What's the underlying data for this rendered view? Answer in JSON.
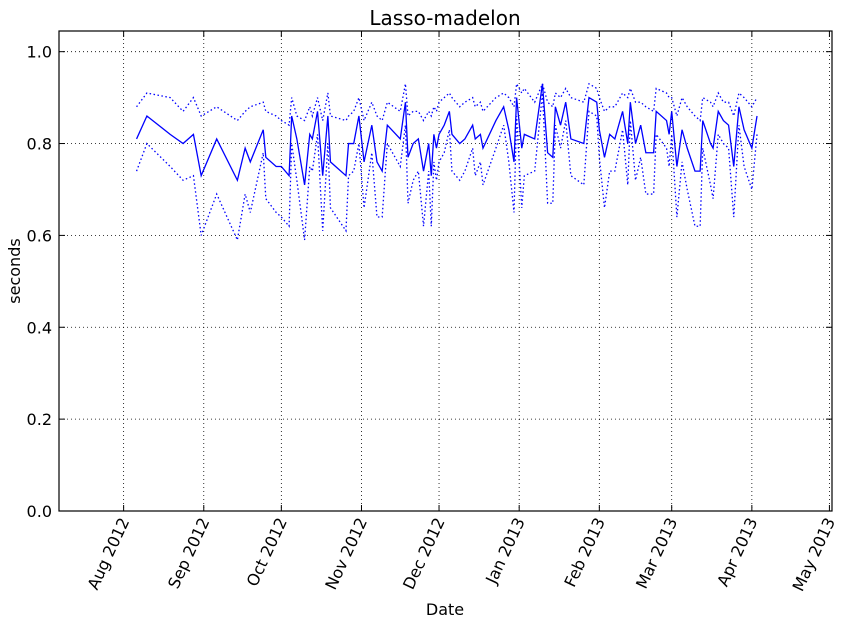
{
  "chart_data": {
    "type": "line",
    "title": "Lasso-madelon",
    "xlabel": "Date",
    "ylabel": "seconds",
    "x": [
      "2012-08-06",
      "2012-08-10",
      "2012-08-19",
      "2012-08-24",
      "2012-08-28",
      "2012-08-31",
      "2012-09-06",
      "2012-09-14",
      "2012-09-17",
      "2012-09-19",
      "2012-09-24",
      "2012-09-25",
      "2012-09-29",
      "2012-10-01",
      "2012-10-04",
      "2012-10-05",
      "2012-10-07",
      "2012-10-10",
      "2012-10-12",
      "2012-10-13",
      "2012-10-15",
      "2012-10-17",
      "2012-10-19",
      "2012-10-20",
      "2012-10-26",
      "2012-10-27",
      "2012-10-29",
      "2012-10-31",
      "2012-11-02",
      "2012-11-05",
      "2012-11-07",
      "2012-11-09",
      "2012-11-11",
      "2012-11-16",
      "2012-11-18",
      "2012-11-19",
      "2012-11-21",
      "2012-11-23",
      "2012-11-25",
      "2012-11-27",
      "2012-11-28",
      "2012-11-29",
      "2012-11-30",
      "2012-12-01",
      "2012-12-03",
      "2012-12-05",
      "2012-12-06",
      "2012-12-09",
      "2012-12-11",
      "2012-12-14",
      "2012-12-15",
      "2012-12-17",
      "2012-12-18",
      "2012-12-23",
      "2012-12-26",
      "2012-12-28",
      "2012-12-30",
      "2012-12-31",
      "2013-01-02",
      "2013-01-03",
      "2013-01-07",
      "2013-01-10",
      "2013-01-12",
      "2013-01-14",
      "2013-01-15",
      "2013-01-17",
      "2013-01-19",
      "2013-01-21",
      "2013-01-26",
      "2013-01-28",
      "2013-01-31",
      "2013-02-01",
      "2013-02-03",
      "2013-02-05",
      "2013-02-07",
      "2013-02-10",
      "2013-02-12",
      "2013-02-13",
      "2013-02-15",
      "2013-02-17",
      "2013-02-19",
      "2013-02-22",
      "2013-02-23",
      "2013-02-27",
      "2013-02-28",
      "2013-03-01",
      "2013-03-03",
      "2013-03-05",
      "2013-03-07",
      "2013-03-10",
      "2013-03-12",
      "2013-03-13",
      "2013-03-16",
      "2013-03-17",
      "2013-03-19",
      "2013-03-21",
      "2013-03-23",
      "2013-03-25",
      "2013-03-27",
      "2013-03-29",
      "2013-04-01",
      "2013-04-03"
    ],
    "series": [
      {
        "color": "#0000ff",
        "style": "solid",
        "values": [
          0.81,
          0.86,
          0.82,
          0.8,
          0.82,
          0.73,
          0.81,
          0.72,
          0.79,
          0.76,
          0.83,
          0.77,
          0.75,
          0.75,
          0.73,
          0.86,
          0.81,
          0.71,
          0.82,
          0.81,
          0.87,
          0.73,
          0.86,
          0.76,
          0.73,
          0.8,
          0.8,
          0.86,
          0.76,
          0.84,
          0.76,
          0.74,
          0.84,
          0.81,
          0.89,
          0.77,
          0.8,
          0.81,
          0.74,
          0.8,
          0.73,
          0.82,
          0.79,
          0.82,
          0.84,
          0.87,
          0.82,
          0.8,
          0.81,
          0.84,
          0.81,
          0.82,
          0.79,
          0.85,
          0.88,
          0.83,
          0.76,
          0.9,
          0.79,
          0.82,
          0.81,
          0.93,
          0.78,
          0.77,
          0.88,
          0.84,
          0.89,
          0.81,
          0.8,
          0.9,
          0.89,
          0.83,
          0.77,
          0.82,
          0.81,
          0.87,
          0.8,
          0.89,
          0.8,
          0.84,
          0.78,
          0.78,
          0.87,
          0.85,
          0.82,
          0.87,
          0.75,
          0.83,
          0.79,
          0.74,
          0.74,
          0.85,
          0.8,
          0.79,
          0.87,
          0.85,
          0.84,
          0.75,
          0.88,
          0.83,
          0.79,
          0.86
        ]
      },
      {
        "color": "#0000ff",
        "style": "dotted",
        "values": [
          0.88,
          0.91,
          0.9,
          0.87,
          0.9,
          0.86,
          0.88,
          0.85,
          0.87,
          0.88,
          0.89,
          0.87,
          0.86,
          0.85,
          0.84,
          0.9,
          0.86,
          0.85,
          0.88,
          0.86,
          0.9,
          0.85,
          0.91,
          0.86,
          0.85,
          0.86,
          0.87,
          0.9,
          0.85,
          0.89,
          0.86,
          0.85,
          0.89,
          0.87,
          0.93,
          0.86,
          0.87,
          0.87,
          0.85,
          0.87,
          0.86,
          0.88,
          0.87,
          0.89,
          0.9,
          0.91,
          0.9,
          0.88,
          0.89,
          0.9,
          0.88,
          0.89,
          0.87,
          0.9,
          0.91,
          0.9,
          0.88,
          0.93,
          0.91,
          0.92,
          0.89,
          0.93,
          0.89,
          0.88,
          0.91,
          0.9,
          0.92,
          0.9,
          0.89,
          0.93,
          0.92,
          0.9,
          0.87,
          0.88,
          0.88,
          0.91,
          0.9,
          0.92,
          0.89,
          0.89,
          0.88,
          0.87,
          0.92,
          0.91,
          0.9,
          0.9,
          0.86,
          0.9,
          0.88,
          0.86,
          0.85,
          0.9,
          0.89,
          0.88,
          0.91,
          0.89,
          0.89,
          0.86,
          0.91,
          0.9,
          0.88,
          0.9
        ]
      },
      {
        "color": "#0000ff",
        "style": "dotted",
        "values": [
          0.74,
          0.8,
          0.75,
          0.72,
          0.73,
          0.6,
          0.69,
          0.59,
          0.69,
          0.65,
          0.78,
          0.68,
          0.65,
          0.64,
          0.62,
          0.8,
          0.72,
          0.59,
          0.75,
          0.74,
          0.82,
          0.61,
          0.8,
          0.66,
          0.61,
          0.73,
          0.74,
          0.8,
          0.66,
          0.78,
          0.64,
          0.64,
          0.8,
          0.75,
          0.84,
          0.67,
          0.72,
          0.74,
          0.62,
          0.74,
          0.62,
          0.76,
          0.72,
          0.76,
          0.78,
          0.83,
          0.74,
          0.72,
          0.74,
          0.79,
          0.73,
          0.76,
          0.71,
          0.79,
          0.84,
          0.76,
          0.65,
          0.86,
          0.66,
          0.73,
          0.74,
          0.91,
          0.67,
          0.67,
          0.84,
          0.79,
          0.85,
          0.73,
          0.71,
          0.87,
          0.86,
          0.77,
          0.66,
          0.74,
          0.74,
          0.83,
          0.71,
          0.85,
          0.72,
          0.77,
          0.69,
          0.69,
          0.82,
          0.79,
          0.75,
          0.82,
          0.64,
          0.76,
          0.7,
          0.62,
          0.62,
          0.79,
          0.71,
          0.68,
          0.82,
          0.8,
          0.79,
          0.64,
          0.84,
          0.75,
          0.7,
          0.82
        ]
      }
    ],
    "xlim": [
      "2012-07-07",
      "2013-05-02"
    ],
    "xticks": [
      {
        "value": "2012-08-01",
        "label": "Aug 2012"
      },
      {
        "value": "2012-09-01",
        "label": "Sep 2012"
      },
      {
        "value": "2012-10-01",
        "label": "Oct 2012"
      },
      {
        "value": "2012-11-01",
        "label": "Nov 2012"
      },
      {
        "value": "2012-12-01",
        "label": "Dec 2012"
      },
      {
        "value": "2013-01-01",
        "label": "Jan 2013"
      },
      {
        "value": "2013-02-01",
        "label": "Feb 2013"
      },
      {
        "value": "2013-03-01",
        "label": "Mar 2013"
      },
      {
        "value": "2013-04-01",
        "label": "Apr 2013"
      },
      {
        "value": "2013-05-01",
        "label": "May 2013"
      }
    ],
    "ylim": [
      0,
      1.045
    ],
    "yticks": [
      {
        "value": 0,
        "label": "0.0"
      },
      0.2,
      0.4,
      0.6,
      0.8,
      {
        "value": 1,
        "label": "1.0"
      }
    ],
    "grid": true
  }
}
